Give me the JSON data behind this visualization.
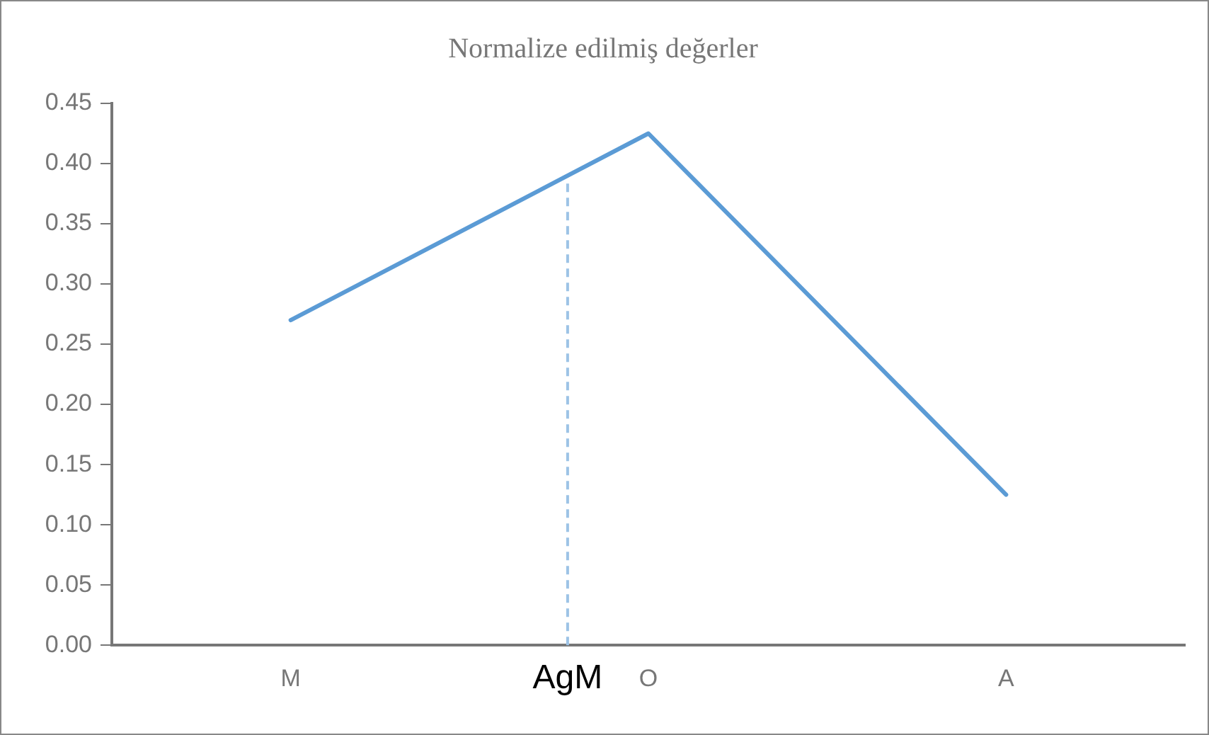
{
  "chart_data": {
    "type": "line",
    "title": "Normalize edilmiş değerler",
    "categories": [
      "M",
      "O",
      "A"
    ],
    "series": [
      {
        "color": "#5b9bd5",
        "values": [
          0.27,
          0.425,
          0.125
        ]
      }
    ],
    "ylim": [
      0,
      0.45
    ],
    "yticks": [
      {
        "value": 0,
        "label": "0.00"
      },
      {
        "value": 0.05,
        "label": "0.05"
      },
      {
        "value": 0.1,
        "label": "0.10"
      },
      {
        "value": 0.15,
        "label": "0.15"
      },
      {
        "value": 0.2,
        "label": "0.20"
      },
      {
        "value": 0.25,
        "label": "0.25"
      },
      {
        "value": 0.3,
        "label": "0.30"
      },
      {
        "value": 0.35,
        "label": "0.35"
      },
      {
        "value": 0.4,
        "label": "0.40"
      },
      {
        "value": 0.45,
        "label": "0.45"
      }
    ],
    "annotations": [
      {
        "text": "AgM",
        "y": 0.39
      }
    ],
    "grid": false,
    "legend": false,
    "marker": "none",
    "line_style": "solid"
  }
}
